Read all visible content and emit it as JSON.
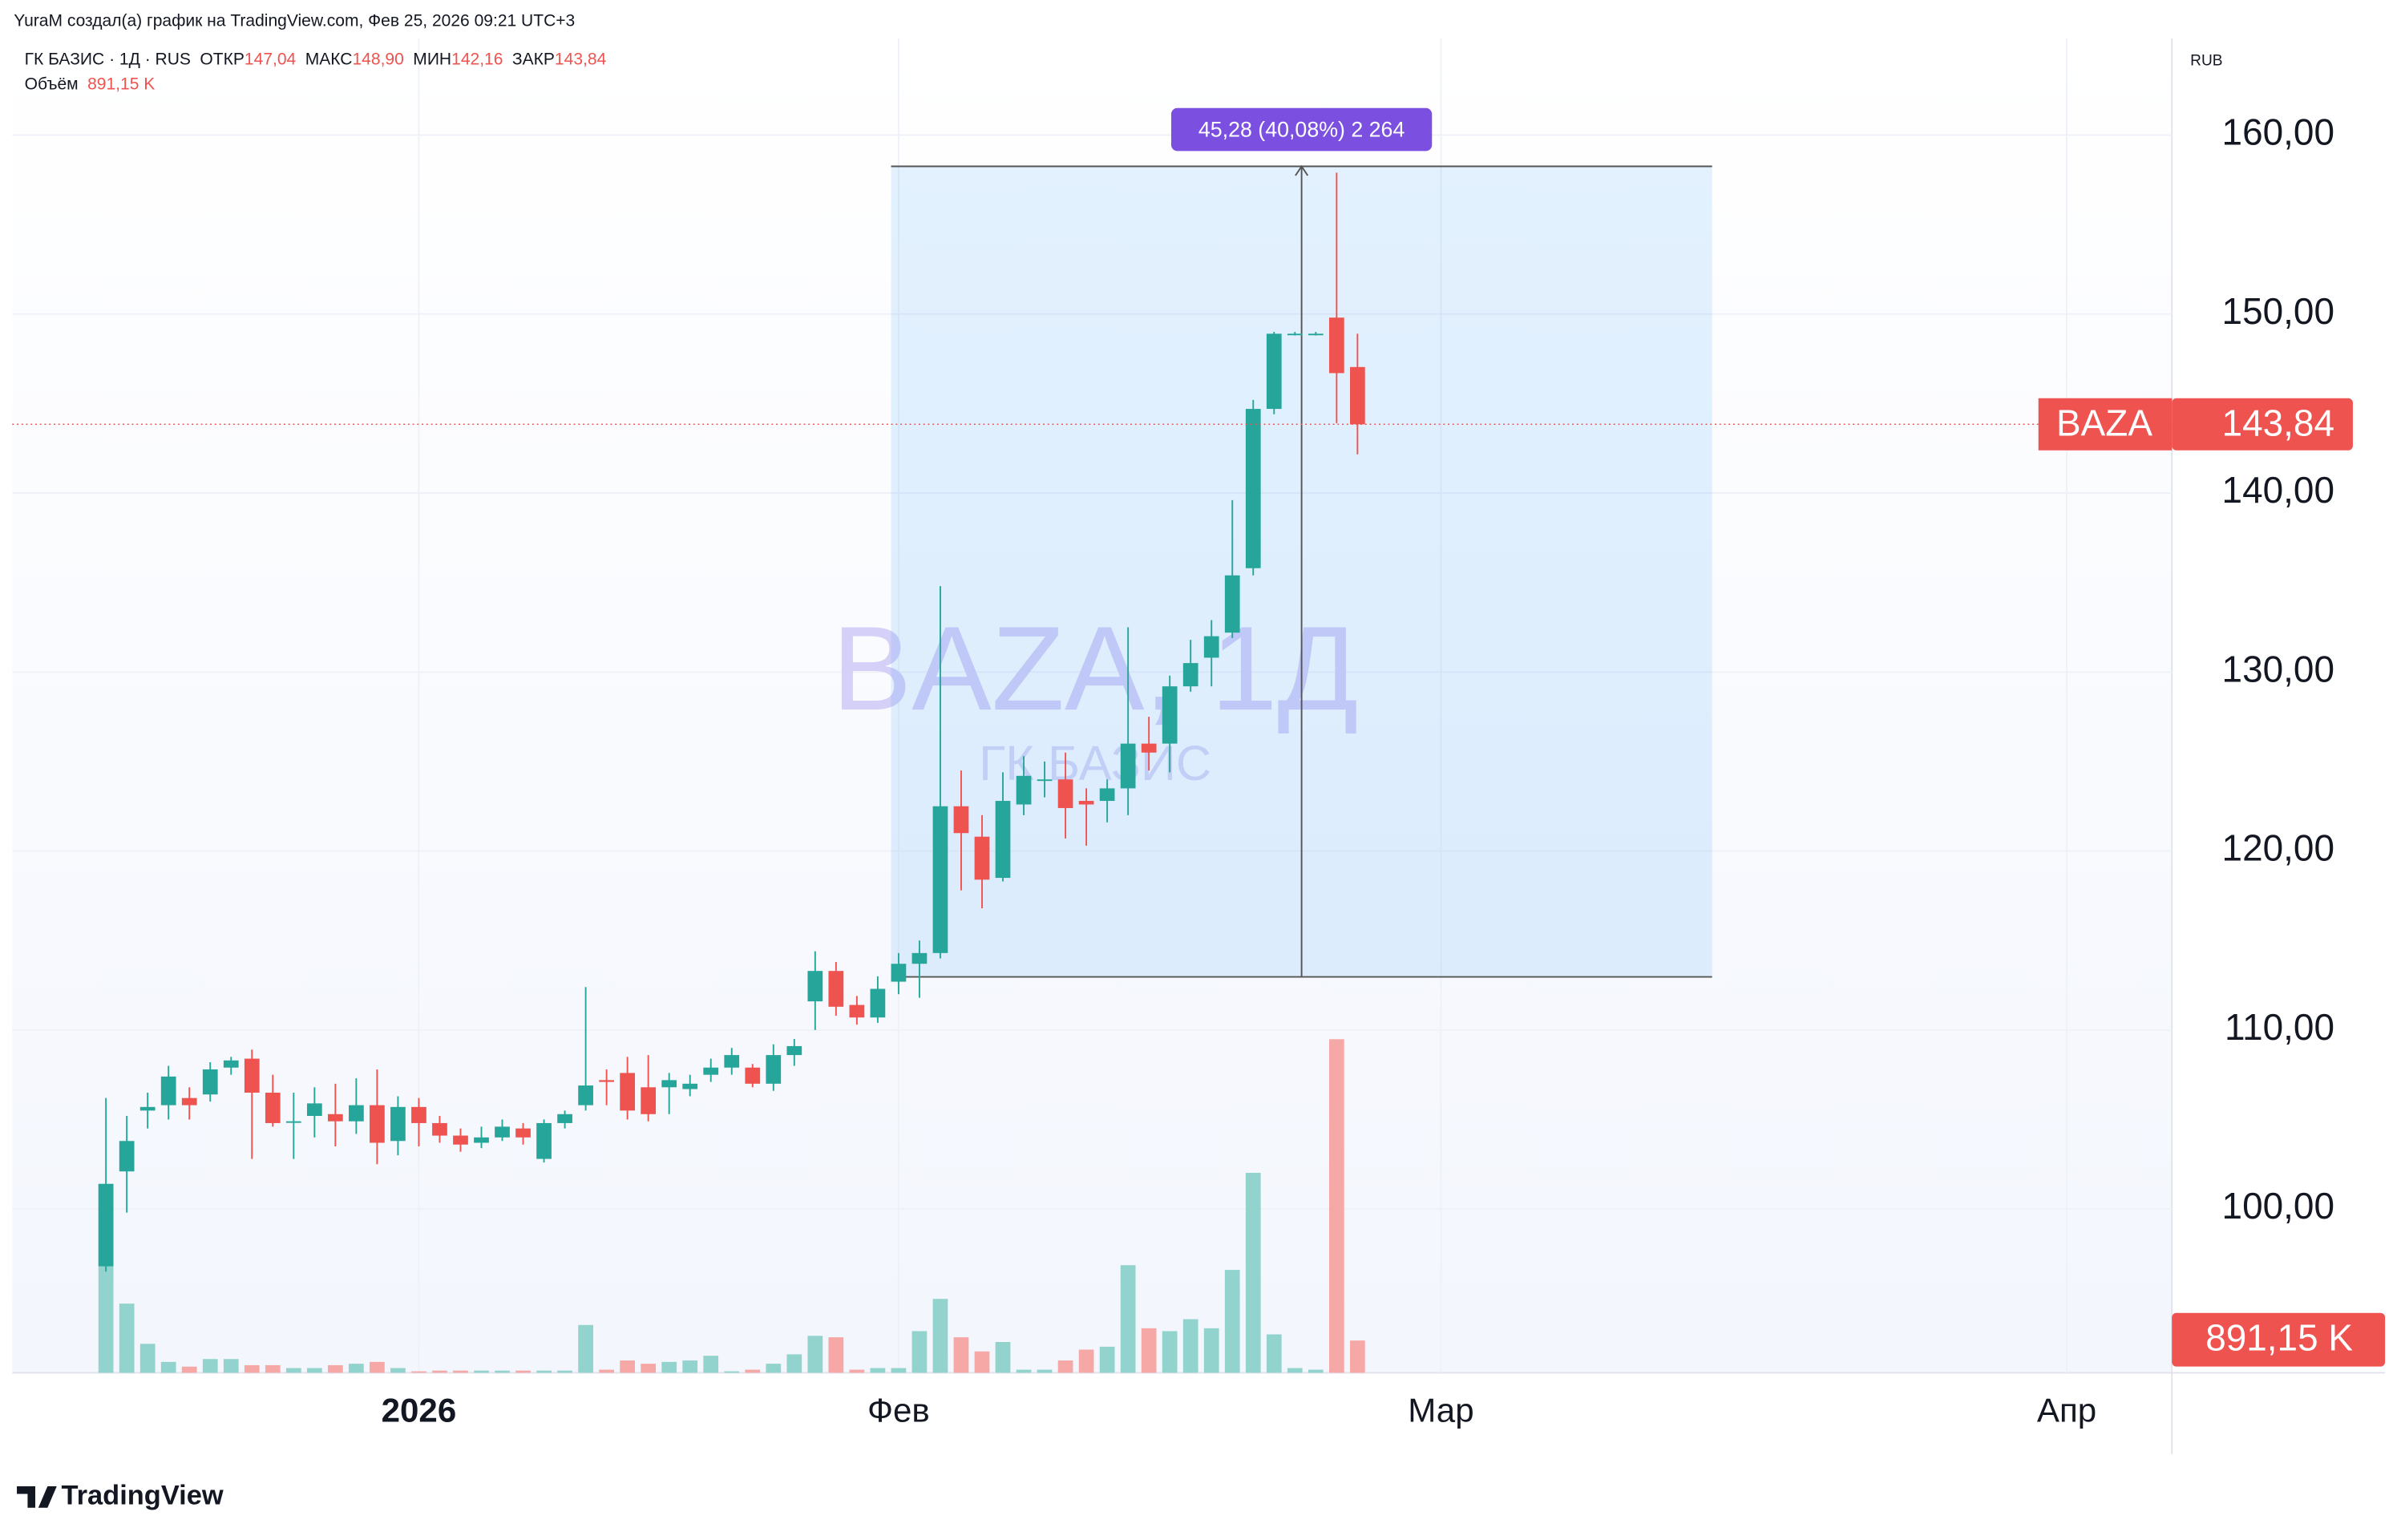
{
  "header": {
    "credit": "YuraM создал(а) график на TradingView.com, Фев 25, 2026 09:21 UTC+3"
  },
  "footer": {
    "logo": "TradingView"
  },
  "chart_data": {
    "type": "candlestick",
    "ticker": "BAZA",
    "currency": "RUB",
    "watermark": {
      "title": "BAZA, 1Д",
      "subtitle": "ГК БАЗИС"
    },
    "legend": {
      "symbol": "ГК БАЗИС · 1Д · RUS",
      "fields": [
        {
          "name": "ОТКР",
          "value": 147.04,
          "label": "147,04"
        },
        {
          "name": "МАКС",
          "value": 148.9,
          "label": "148,90"
        },
        {
          "name": "МИН",
          "value": 142.16,
          "label": "142,16"
        },
        {
          "name": "ЗАКР",
          "value": 143.84,
          "label": "143,84"
        }
      ],
      "volume": {
        "name": "Объём",
        "value": 891.15,
        "label": "891,15 K"
      }
    },
    "colors": {
      "up": "#26a69a",
      "down": "#ef5350",
      "volume_up": "#92d3cd",
      "volume_down": "#f6a8a6"
    },
    "grid": true,
    "xlim": [
      -4.49,
      99.04
    ],
    "xticks": [
      {
        "value": 15,
        "label": "2026"
      },
      {
        "value": 38,
        "label": "Фев"
      },
      {
        "value": 64,
        "label": "Мар"
      },
      {
        "value": 94,
        "label": "Апр"
      }
    ],
    "ylim": [
      90.85,
      165.4
    ],
    "yticks": [
      {
        "value": 100,
        "label": "100,00"
      },
      {
        "value": 110,
        "label": "110,00"
      },
      {
        "value": 120,
        "label": "120,00"
      },
      {
        "value": 130,
        "label": "130,00"
      },
      {
        "value": 140,
        "label": "140,00"
      },
      {
        "value": 150,
        "label": "150,00"
      },
      {
        "value": 160,
        "label": "160,00"
      }
    ],
    "open": [
      96.8,
      102.1,
      105.5,
      105.8,
      106.2,
      106.4,
      107.9,
      108.4,
      106.5,
      104.9,
      105.2,
      105.3,
      104.9,
      105.8,
      103.8,
      105.7,
      104.8,
      104.1,
      103.7,
      104,
      104.5,
      102.8,
      104.8,
      105.8,
      107.2,
      107.6,
      106.8,
      106.8,
      106.7,
      107.5,
      107.9,
      107.9,
      107,
      108.6,
      111.6,
      113.3,
      111.4,
      110.7,
      112.7,
      113.7,
      114.3,
      122.5,
      120.8,
      118.5,
      122.6,
      124,
      124,
      122.8,
      122.8,
      123.5,
      126,
      126,
      129.2,
      130.8,
      132.2,
      135.8,
      144.7,
      148.9,
      148.9,
      149.8,
      147.04
    ],
    "high": [
      106.2,
      105.2,
      106.5,
      108,
      106.8,
      108.2,
      108.5,
      108.9,
      107.5,
      106.5,
      106.8,
      107,
      107.3,
      107.8,
      106.3,
      106.2,
      105.2,
      104.5,
      104.6,
      105,
      104.8,
      105,
      105.5,
      112.4,
      107.8,
      108.5,
      108.6,
      107.6,
      107.5,
      108.4,
      109,
      108.1,
      109.2,
      109.5,
      114.4,
      113.8,
      111.9,
      113,
      114.3,
      115,
      134.8,
      124.5,
      122,
      124.4,
      125.3,
      125,
      125.5,
      123.5,
      124,
      132.5,
      127.5,
      129.8,
      131.8,
      132.9,
      139.6,
      145.2,
      149,
      149,
      149,
      157.9,
      148.9
    ],
    "low": [
      96.5,
      99.8,
      104.5,
      105,
      105,
      106,
      107.5,
      102.8,
      104.6,
      102.8,
      104,
      103.5,
      104.2,
      102.5,
      103,
      103.5,
      103.7,
      103.2,
      103.4,
      103.8,
      103.6,
      102.6,
      104.5,
      105.5,
      105.8,
      105,
      104.9,
      105.3,
      106.3,
      107.1,
      107.5,
      106.8,
      106.6,
      108,
      110,
      110.8,
      110.3,
      110.4,
      112,
      111.8,
      114,
      117.8,
      116.8,
      118.3,
      122,
      123,
      120.7,
      120.3,
      121.6,
      122,
      124.5,
      124.4,
      128.9,
      129.2,
      131.9,
      135.4,
      144.4,
      148.8,
      148.8,
      143.9,
      142.16
    ],
    "close": [
      101.4,
      103.8,
      105.7,
      107.4,
      105.8,
      107.8,
      108.3,
      106.5,
      104.8,
      104.9,
      105.9,
      104.9,
      105.8,
      103.7,
      105.7,
      104.8,
      104.1,
      103.6,
      104,
      104.6,
      104,
      104.8,
      105.3,
      106.9,
      107.1,
      105.5,
      105.3,
      107.2,
      107,
      107.9,
      108.6,
      107,
      108.6,
      109.1,
      113.3,
      111.3,
      110.7,
      112.3,
      113.7,
      114.3,
      122.5,
      121,
      118.4,
      122.8,
      124.2,
      124,
      122.4,
      122.6,
      123.5,
      126,
      125.5,
      129.2,
      130.5,
      132,
      135.4,
      144.7,
      148.9,
      148.9,
      148.9,
      146.7,
      143.84
    ],
    "volume": [
      5220,
      1910,
      800,
      300,
      170,
      380,
      380,
      210,
      210,
      130,
      130,
      210,
      250,
      300,
      130,
      40,
      60,
      60,
      60,
      60,
      60,
      60,
      60,
      1320,
      85,
      340,
      250,
      300,
      340,
      470,
      40,
      85,
      250,
      510,
      1020,
      980,
      85,
      130,
      130,
      1150,
      2040,
      980,
      590,
      850,
      85,
      85,
      340,
      640,
      720,
      2970,
      1230,
      1150,
      1480,
      1230,
      2840,
      5520,
      1060,
      130,
      85,
      9210,
      891.15
    ],
    "measure": {
      "start": 38,
      "end": 77,
      "from": 112.97,
      "to": 158.25,
      "label": "45,28 (40,08%) 2 264"
    }
  }
}
